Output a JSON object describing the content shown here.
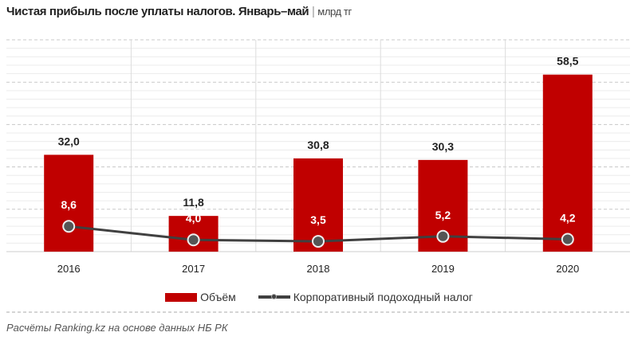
{
  "title": "Чистая прибыль после уплаты налогов. Январь–май",
  "unit": "млрд тг",
  "source": "Расчёты Ranking.kz на основе данных  НБ РК",
  "colors": {
    "bar": "#c00000",
    "line": "#404040"
  },
  "chart_data": {
    "type": "bar+line",
    "categories": [
      "2016",
      "2017",
      "2018",
      "2019",
      "2020"
    ],
    "series": [
      {
        "name": "Объём",
        "type": "bar",
        "values": [
          32.0,
          11.8,
          30.8,
          30.3,
          58.5
        ],
        "labels": [
          "32,0",
          "11,8",
          "30,8",
          "30,3",
          "58,5"
        ]
      },
      {
        "name": "Корпоративный подоходный налог",
        "type": "line",
        "axis": "secondary",
        "values": [
          8.6,
          4.0,
          3.5,
          5.2,
          4.2
        ],
        "labels": [
          "8,6",
          "4,0",
          "3,5",
          "5,2",
          "4,2"
        ]
      }
    ],
    "ylim": [
      0,
      70
    ],
    "y2lim": [
      0,
      72
    ],
    "grid": true,
    "legend": "bottom"
  }
}
